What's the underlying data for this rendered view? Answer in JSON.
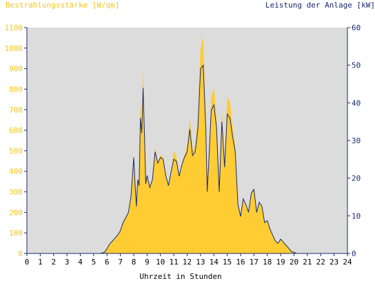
{
  "chart_data": {
    "type": "area",
    "left_axis": {
      "label": "Bestrahlungsstärke [W/qm]",
      "color": "#F5C518",
      "ylim": [
        0,
        1100
      ],
      "ticks": [
        0,
        100,
        200,
        300,
        400,
        500,
        600,
        700,
        800,
        900,
        1000,
        1100
      ]
    },
    "right_axis": {
      "label": "Leistung der Anlage [kW]",
      "color": "#1A2A6C",
      "ylim": [
        0,
        60
      ],
      "ticks": [
        0,
        10,
        20,
        30,
        40,
        50,
        60
      ]
    },
    "x_axis": {
      "label": "Uhrzeit in Stunden",
      "xlim": [
        0,
        24
      ],
      "ticks": [
        "0",
        "1",
        "2",
        "3",
        "4",
        "5",
        "6",
        "7",
        "8",
        "9",
        "10",
        "11",
        "12",
        "13",
        "14",
        "15",
        "16",
        "17",
        "18",
        "19",
        "20",
        "21",
        "22",
        "23",
        "24"
      ]
    },
    "grid": false,
    "plot_background": "#DCDCDC",
    "series": [
      {
        "axis": "left",
        "style": "area",
        "color": "#FFCC33",
        "x": [
          0,
          5.5,
          5.8,
          6.0,
          6.2,
          6.4,
          6.6,
          6.8,
          7.0,
          7.2,
          7.4,
          7.6,
          7.8,
          8.0,
          8.1,
          8.2,
          8.3,
          8.4,
          8.5,
          8.6,
          8.7,
          8.8,
          8.9,
          9.0,
          9.1,
          9.2,
          9.4,
          9.6,
          9.8,
          10.0,
          10.2,
          10.4,
          10.6,
          10.8,
          11.0,
          11.2,
          11.4,
          11.6,
          11.8,
          12.0,
          12.2,
          12.4,
          12.6,
          12.8,
          13.0,
          13.2,
          13.4,
          13.5,
          13.6,
          13.8,
          14.0,
          14.2,
          14.4,
          14.6,
          14.8,
          15.0,
          15.2,
          15.4,
          15.6,
          15.8,
          16.0,
          16.2,
          16.4,
          16.6,
          16.8,
          17.0,
          17.2,
          17.4,
          17.6,
          17.8,
          18.0,
          18.2,
          18.4,
          18.6,
          18.8,
          19.0,
          19.2,
          19.4,
          19.6,
          19.8,
          20.0,
          20.2,
          24
        ],
        "values": [
          0,
          0,
          5,
          25,
          45,
          60,
          75,
          90,
          110,
          150,
          175,
          200,
          280,
          480,
          350,
          230,
          360,
          330,
          750,
          600,
          900,
          620,
          340,
          380,
          350,
          320,
          360,
          520,
          440,
          480,
          470,
          380,
          330,
          400,
          500,
          470,
          380,
          440,
          480,
          520,
          660,
          500,
          520,
          660,
          990,
          1060,
          620,
          300,
          420,
          760,
          810,
          650,
          300,
          700,
          420,
          760,
          740,
          620,
          520,
          240,
          180,
          270,
          240,
          200,
          300,
          320,
          200,
          250,
          230,
          150,
          160,
          120,
          90,
          60,
          50,
          70,
          55,
          40,
          25,
          10,
          5,
          0,
          0
        ]
      },
      {
        "axis": "right",
        "style": "line",
        "color": "#1A2A6C",
        "x": [
          0,
          5.5,
          5.8,
          6.0,
          6.2,
          6.4,
          6.6,
          6.8,
          7.0,
          7.2,
          7.4,
          7.6,
          7.8,
          8.0,
          8.1,
          8.2,
          8.3,
          8.4,
          8.5,
          8.6,
          8.7,
          8.8,
          8.9,
          9.0,
          9.1,
          9.2,
          9.4,
          9.6,
          9.8,
          10.0,
          10.2,
          10.4,
          10.6,
          10.8,
          11.0,
          11.2,
          11.4,
          11.6,
          11.8,
          12.0,
          12.2,
          12.4,
          12.6,
          12.8,
          13.0,
          13.2,
          13.4,
          13.5,
          13.6,
          13.8,
          14.0,
          14.2,
          14.4,
          14.6,
          14.8,
          15.0,
          15.2,
          15.4,
          15.6,
          15.8,
          16.0,
          16.2,
          16.4,
          16.6,
          16.8,
          17.0,
          17.2,
          17.4,
          17.6,
          17.8,
          18.0,
          18.2,
          18.4,
          18.6,
          18.8,
          19.0,
          19.2,
          19.4,
          19.6,
          19.8,
          20.0,
          20.2,
          24
        ],
        "values": [
          0,
          0,
          0.3,
          1.3,
          2.5,
          3.3,
          4.1,
          4.9,
          6.0,
          8.2,
          9.5,
          10.9,
          15.3,
          25.5,
          18.5,
          12.5,
          19.6,
          18.0,
          36.0,
          32.0,
          44.0,
          32.0,
          18.5,
          20.7,
          19.1,
          17.5,
          19.6,
          27.0,
          24.0,
          25.5,
          25.0,
          20.7,
          18.0,
          21.8,
          25.0,
          24.5,
          20.5,
          23.5,
          25.5,
          27.0,
          33.0,
          26.0,
          27.0,
          33.0,
          49.0,
          50.0,
          33.0,
          16.4,
          22.9,
          38.0,
          39.5,
          33.5,
          16.4,
          35.0,
          22.9,
          37.0,
          36.0,
          31.0,
          27.0,
          13.1,
          9.8,
          14.5,
          13.0,
          10.9,
          16.0,
          17.0,
          10.9,
          13.6,
          12.5,
          8.2,
          8.7,
          6.5,
          4.9,
          3.3,
          2.7,
          3.8,
          3.0,
          2.2,
          1.4,
          0.5,
          0.3,
          0,
          0
        ]
      }
    ]
  }
}
